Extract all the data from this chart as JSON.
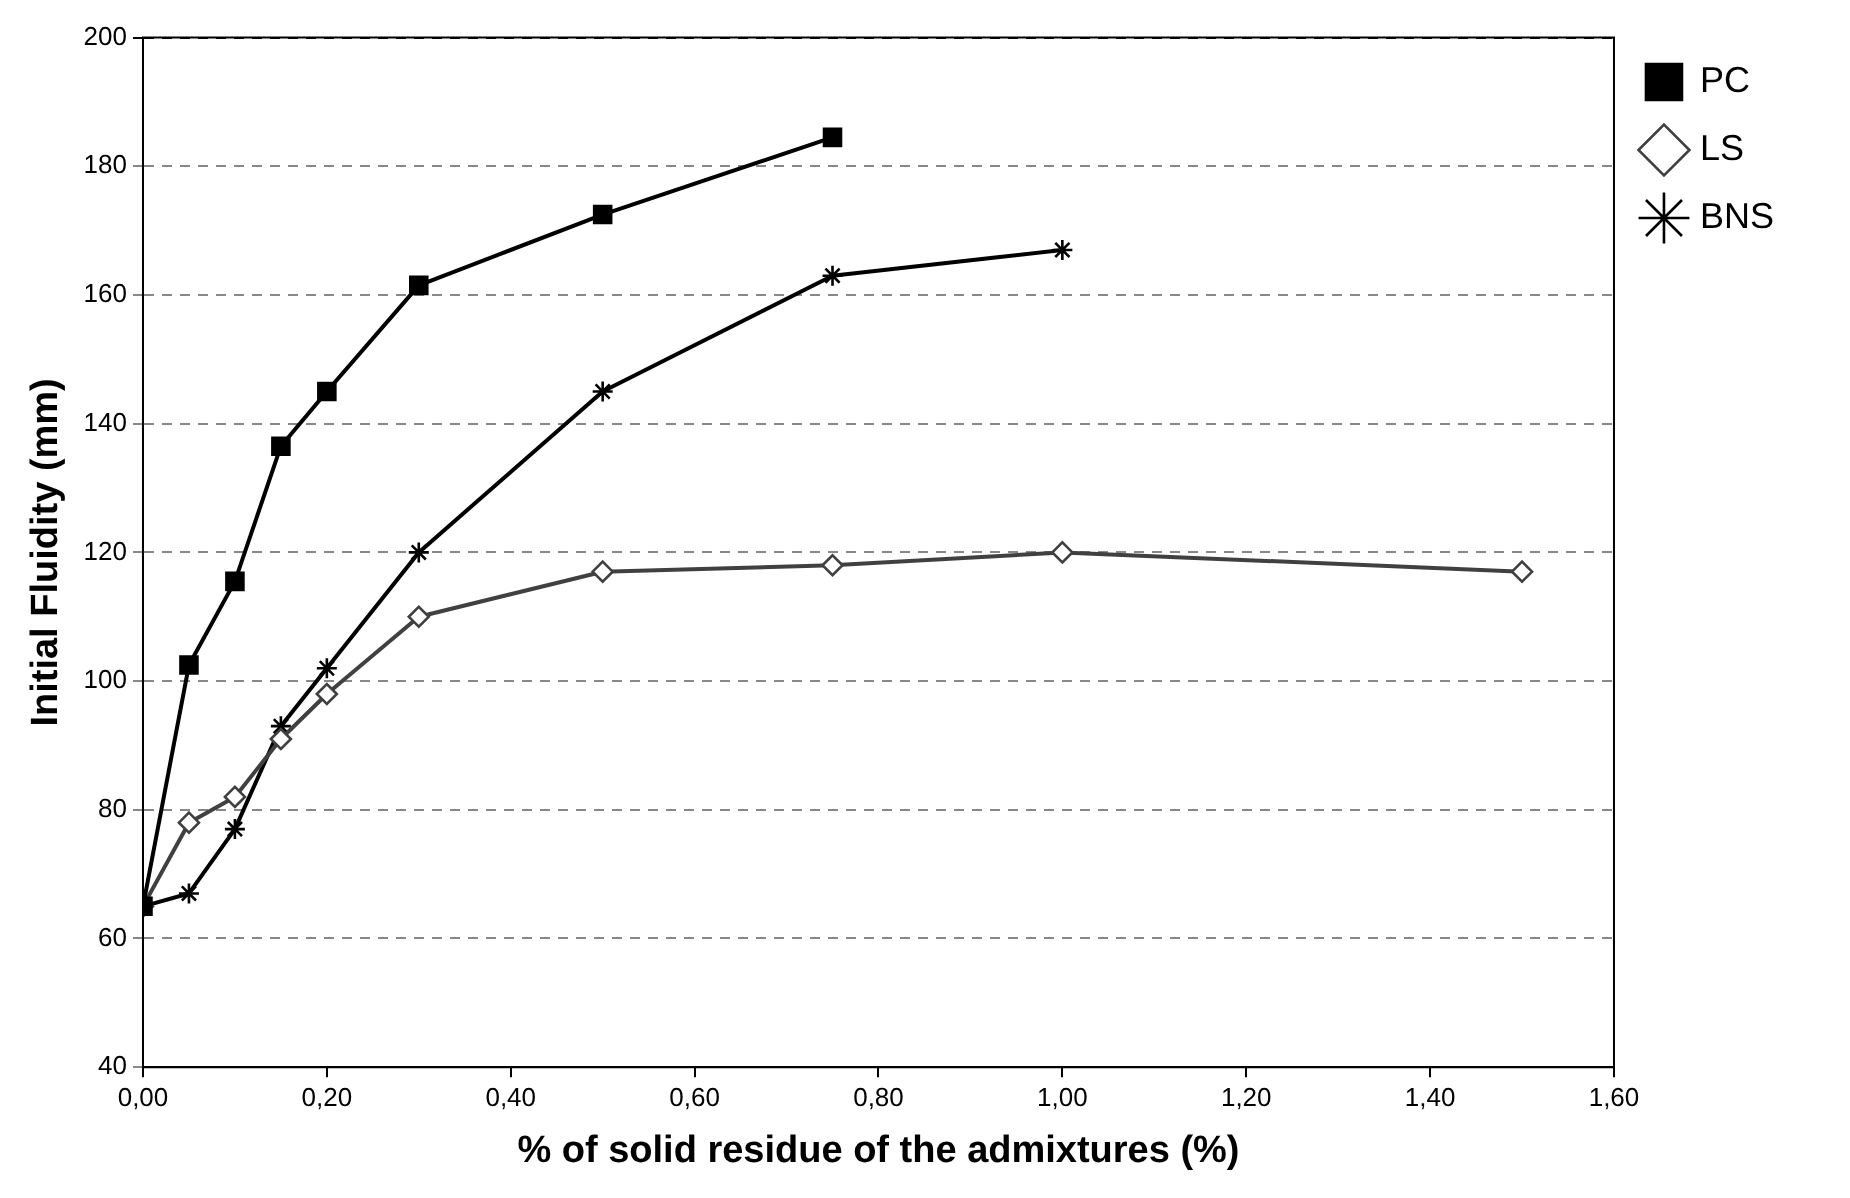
{
  "chart_data": {
    "type": "line",
    "xlabel": "% of solid residue of the admixtures (%)",
    "ylabel": "Initial Fluidity (mm)",
    "series": [
      {
        "name": "LS",
        "color": "#404040",
        "marker": "diamond",
        "x": [
          0,
          0.05,
          0.1,
          0.15,
          0.2,
          0.3,
          0.5,
          0.75,
          1.0,
          1.5
        ],
        "values": [
          65,
          78,
          82,
          91,
          98,
          110,
          117,
          118,
          120,
          117
        ]
      },
      {
        "name": "PC",
        "color": "#000000",
        "marker": "square",
        "x": [
          0,
          0.05,
          0.1,
          0.15,
          0.2,
          0.3,
          0.5,
          0.75
        ],
        "values": [
          65,
          102.5,
          115.5,
          136.5,
          145,
          161.5,
          172.5,
          184.5
        ]
      },
      {
        "name": "BNS",
        "color": "#000000",
        "marker": "cross",
        "x": [
          0,
          0.05,
          0.1,
          0.15,
          0.2,
          0.3,
          0.5,
          0.75,
          1.0
        ],
        "values": [
          65,
          67,
          77,
          93,
          102,
          120,
          145,
          163,
          167
        ]
      }
    ],
    "xlim": [
      0,
      1.6
    ],
    "xticks": [
      {
        "value": 0,
        "label": "0,00"
      },
      {
        "value": 0.2,
        "label": "0,20"
      },
      {
        "value": 0.4,
        "label": "0,40"
      },
      {
        "value": 0.6,
        "label": "0,60"
      },
      {
        "value": 0.8,
        "label": "0,80"
      },
      {
        "value": 1.0,
        "label": "1,00"
      },
      {
        "value": 1.2,
        "label": "1,20"
      },
      {
        "value": 1.4,
        "label": "1,40"
      },
      {
        "value": 1.6,
        "label": "1,60"
      }
    ],
    "ylim": [
      40,
      200
    ],
    "yticks": [
      40,
      60,
      80,
      100,
      120,
      140,
      160,
      180,
      200
    ],
    "grid": "y",
    "legend": "top right",
    "line_style": "solid"
  }
}
